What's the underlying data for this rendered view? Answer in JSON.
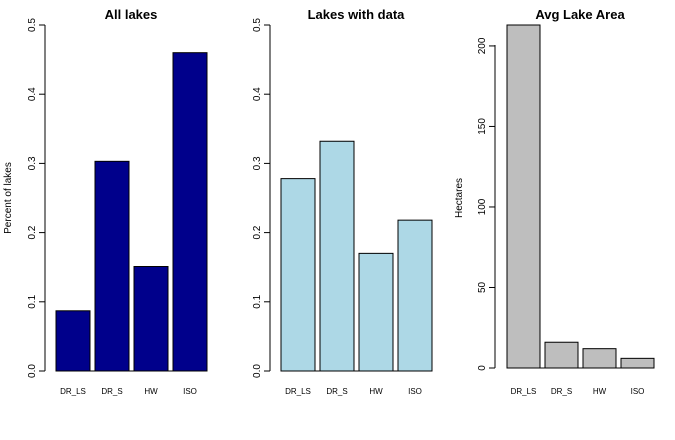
{
  "chart_data": [
    {
      "type": "bar",
      "title": "All lakes",
      "ylabel": "Percent of lakes",
      "categories": [
        "DR_LS",
        "DR_S",
        "HW",
        "ISO"
      ],
      "values": [
        0.087,
        0.303,
        0.151,
        0.46
      ],
      "ylim": [
        0,
        0.5
      ],
      "yticks": [
        "0.0",
        "0.1",
        "0.2",
        "0.3",
        "0.4",
        "0.5"
      ],
      "bar_color": "#00008B",
      "grid": false
    },
    {
      "type": "bar",
      "title": "Lakes with data",
      "ylabel": "",
      "categories": [
        "DR_LS",
        "DR_S",
        "HW",
        "ISO"
      ],
      "values": [
        0.278,
        0.332,
        0.17,
        0.218
      ],
      "ylim": [
        0,
        0.5
      ],
      "yticks": [
        "0.0",
        "0.1",
        "0.2",
        "0.3",
        "0.4",
        "0.5"
      ],
      "bar_color": "#ADD8E6",
      "grid": false
    },
    {
      "type": "bar",
      "title": "Avg Lake Area",
      "ylabel": "Hectares",
      "categories": [
        "DR_LS",
        "DR_S",
        "HW",
        "ISO"
      ],
      "values": [
        213,
        16,
        12,
        6
      ],
      "ylim": [
        0,
        213
      ],
      "yticks": [
        "0",
        "50",
        "100",
        "150",
        "200"
      ],
      "bar_color": "#BEBEBE",
      "grid": false
    }
  ]
}
